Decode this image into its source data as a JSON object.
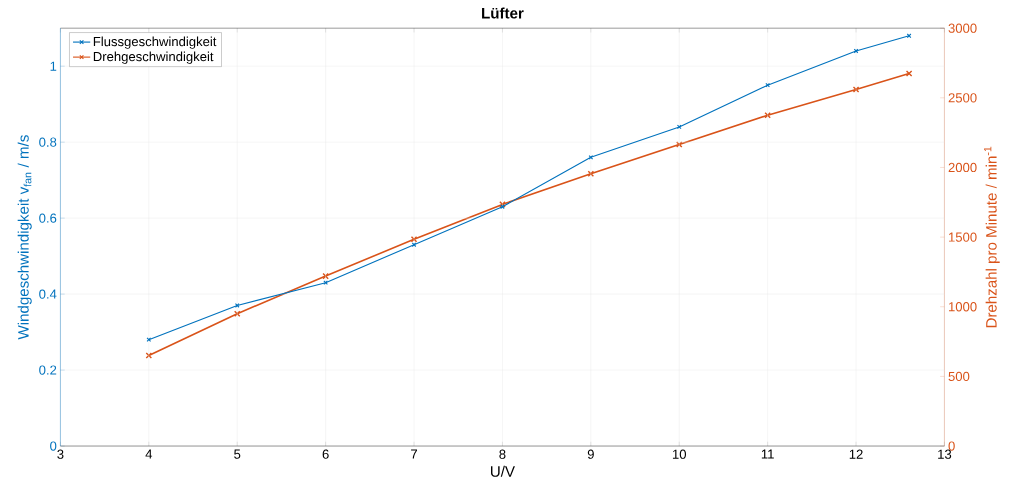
{
  "chart_data": {
    "type": "line",
    "title": "Lüfter",
    "xlabel": "U/V",
    "ylabel": "Windgeschwindigkeit v$_{fan}$ / m/s",
    "y2label": "Drehzahl pro Minute / min$^{-1}$",
    "x": [
      4,
      5,
      6,
      7,
      8,
      9,
      10,
      11,
      12,
      12.6
    ],
    "series": [
      {
        "name": "Flussgeschwindigkeit",
        "color": "#0072bd",
        "values": [
          0.28,
          0.37,
          0.43,
          0.53,
          0.63,
          0.76,
          0.84,
          0.95,
          1.04,
          1.08
        ]
      },
      {
        "name": "Drehgeschwindigkeit",
        "color": "#d95319",
        "axis": "y2",
        "values": [
          650,
          950,
          1220,
          1485,
          1735,
          1955,
          2165,
          2375,
          2560,
          2675
        ]
      }
    ],
    "xlim": [
      3,
      13
    ],
    "xticks": [
      3,
      4,
      5,
      6,
      7,
      8,
      9,
      10,
      11,
      12,
      13
    ],
    "ylim": [
      0,
      1.1
    ],
    "yticks": [
      0,
      0.2,
      0.4,
      0.6,
      0.8,
      1
    ],
    "y2lim": [
      0,
      3000
    ],
    "y2ticks": [
      0,
      500,
      1000,
      1500,
      2000,
      2500,
      3000
    ],
    "grid": true,
    "legend": "top left",
    "marker": "cross",
    "line_style": "solid"
  }
}
